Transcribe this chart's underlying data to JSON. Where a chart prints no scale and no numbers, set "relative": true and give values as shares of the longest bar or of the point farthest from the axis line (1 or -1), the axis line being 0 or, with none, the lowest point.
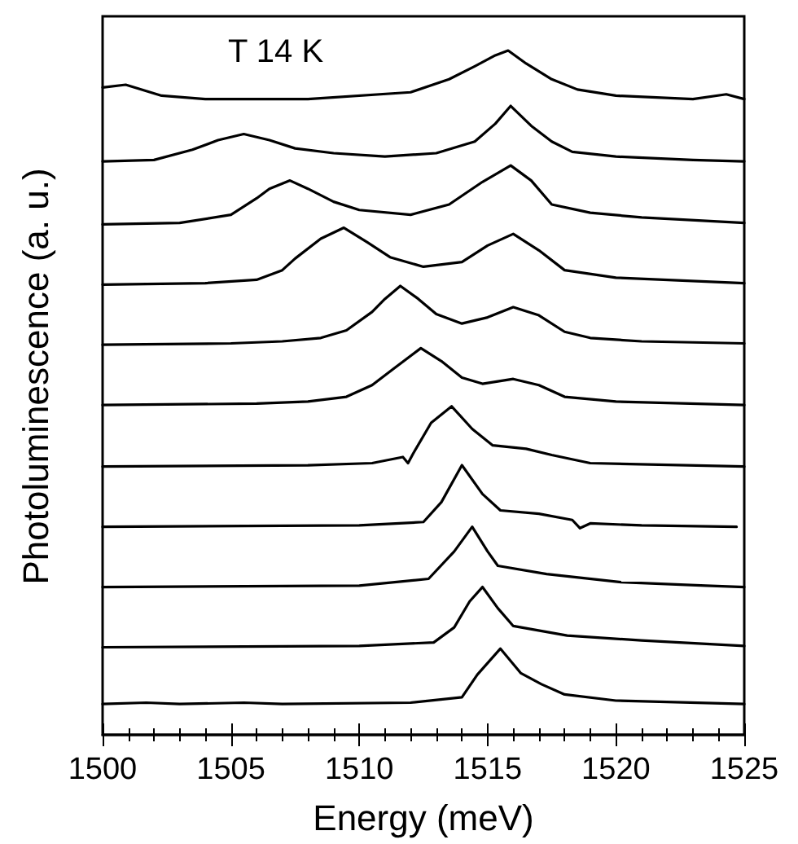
{
  "chart_data": {
    "type": "line",
    "relative": true,
    "xlabel": "Energy (meV)",
    "ylabel": "Photoluminescence (a. u.)",
    "annotations": [
      "T 14 K"
    ],
    "xlim": [
      1500,
      1525
    ],
    "xticks": [
      1500,
      1505,
      1510,
      1515,
      1520,
      1525
    ],
    "marker": "none",
    "line_style": "solid",
    "series": [
      {
        "color": "#000000",
        "x": [
          1500,
          1500.9,
          1502.3,
          1504,
          1506,
          1508,
          1512,
          1513.5,
          1514.5,
          1515.3,
          1515.8,
          1516.5,
          1517.5,
          1518.5,
          1520,
          1523,
          1524.3,
          1525
        ],
        "values": [
          0.946,
          0.95,
          0.934,
          0.929,
          0.929,
          0.929,
          0.939,
          0.958,
          0.977,
          0.993,
          1.0,
          0.981,
          0.958,
          0.943,
          0.934,
          0.929,
          0.936,
          0.929
        ]
      },
      {
        "color": "#000000",
        "x": [
          1500,
          1502,
          1503.5,
          1504.5,
          1505.5,
          1506.5,
          1507.5,
          1509,
          1511,
          1513,
          1514.5,
          1515.3,
          1515.9,
          1516.7,
          1517.5,
          1518.3,
          1520,
          1523,
          1525
        ],
        "values": [
          0.838,
          0.84,
          0.855,
          0.869,
          0.878,
          0.869,
          0.857,
          0.85,
          0.845,
          0.85,
          0.867,
          0.893,
          0.919,
          0.89,
          0.867,
          0.852,
          0.845,
          0.84,
          0.838
        ]
      },
      {
        "color": "#000000",
        "x": [
          1500,
          1503,
          1505,
          1506,
          1506.5,
          1507.3,
          1508,
          1509,
          1510,
          1512,
          1513.5,
          1514.8,
          1515.9,
          1516.7,
          1517.5,
          1519,
          1521,
          1525
        ],
        "values": [
          0.746,
          0.748,
          0.76,
          0.784,
          0.798,
          0.81,
          0.798,
          0.779,
          0.767,
          0.76,
          0.775,
          0.808,
          0.832,
          0.81,
          0.775,
          0.763,
          0.756,
          0.748
        ]
      },
      {
        "color": "#000000",
        "x": [
          1500,
          1504,
          1506,
          1507,
          1507.5,
          1508.5,
          1509.4,
          1510.3,
          1511.2,
          1512.5,
          1514,
          1515,
          1516,
          1517,
          1518,
          1520,
          1525
        ],
        "values": [
          0.658,
          0.66,
          0.665,
          0.679,
          0.696,
          0.725,
          0.741,
          0.72,
          0.698,
          0.684,
          0.691,
          0.715,
          0.732,
          0.708,
          0.679,
          0.668,
          0.66
        ]
      },
      {
        "color": "#000000",
        "x": [
          1500,
          1505,
          1507,
          1508.5,
          1509.5,
          1510.5,
          1511,
          1511.6,
          1512.3,
          1513,
          1514,
          1515,
          1516,
          1517,
          1518,
          1519,
          1521,
          1525
        ],
        "values": [
          0.57,
          0.572,
          0.575,
          0.58,
          0.591,
          0.618,
          0.637,
          0.656,
          0.637,
          0.615,
          0.601,
          0.61,
          0.625,
          0.613,
          0.589,
          0.58,
          0.575,
          0.572
        ]
      },
      {
        "color": "#000000",
        "x": [
          1500,
          1506,
          1508,
          1509.5,
          1510.5,
          1511.3,
          1512.4,
          1513.2,
          1514,
          1514.8,
          1516,
          1517,
          1518,
          1520,
          1525
        ],
        "values": [
          0.482,
          0.484,
          0.487,
          0.494,
          0.511,
          0.534,
          0.565,
          0.546,
          0.522,
          0.513,
          0.52,
          0.511,
          0.494,
          0.487,
          0.482
        ]
      },
      {
        "color": "#000000",
        "x": [
          1500,
          1508,
          1510.5,
          1511.7,
          1511.9,
          1512.1,
          1512.8,
          1513.6,
          1514.4,
          1515.2,
          1516.5,
          1517.5,
          1519,
          1525
        ],
        "values": [
          0.392,
          0.394,
          0.397,
          0.406,
          0.397,
          0.411,
          0.456,
          0.48,
          0.447,
          0.423,
          0.418,
          0.409,
          0.397,
          0.392
        ]
      },
      {
        "color": "#000000",
        "x": [
          1500,
          1510,
          1512.5,
          1513.2,
          1514,
          1514.8,
          1515.5,
          1517,
          1518.3,
          1518.6,
          1519,
          1521,
          1524.7
        ],
        "values": [
          0.304,
          0.306,
          0.311,
          0.34,
          0.394,
          0.352,
          0.328,
          0.323,
          0.314,
          0.302,
          0.309,
          0.306,
          0.304
        ]
      },
      {
        "color": "#000000",
        "x": [
          1500,
          1510,
          1512.7,
          1513.7,
          1514.4,
          1515,
          1515.4,
          1517.3,
          1520.2,
          1523.5,
          1525
        ],
        "values": [
          0.216,
          0.218,
          0.228,
          0.268,
          0.304,
          0.268,
          0.247,
          0.235,
          0.223,
          0.218,
          0.216
        ]
      },
      {
        "color": "#000000",
        "x": [
          1500,
          1510,
          1512.9,
          1513.7,
          1514.3,
          1514.8,
          1515.4,
          1516,
          1518.1,
          1521,
          1525
        ],
        "values": [
          0.128,
          0.13,
          0.135,
          0.157,
          0.195,
          0.216,
          0.185,
          0.159,
          0.145,
          0.138,
          0.13
        ]
      },
      {
        "color": "#000000",
        "x": [
          1500,
          1501.7,
          1503,
          1505.5,
          1507,
          1512,
          1514,
          1514.6,
          1515.5,
          1516.3,
          1517.1,
          1518,
          1520,
          1525
        ],
        "values": [
          0.045,
          0.047,
          0.045,
          0.047,
          0.045,
          0.047,
          0.055,
          0.088,
          0.126,
          0.09,
          0.074,
          0.059,
          0.05,
          0.045
        ]
      }
    ]
  }
}
